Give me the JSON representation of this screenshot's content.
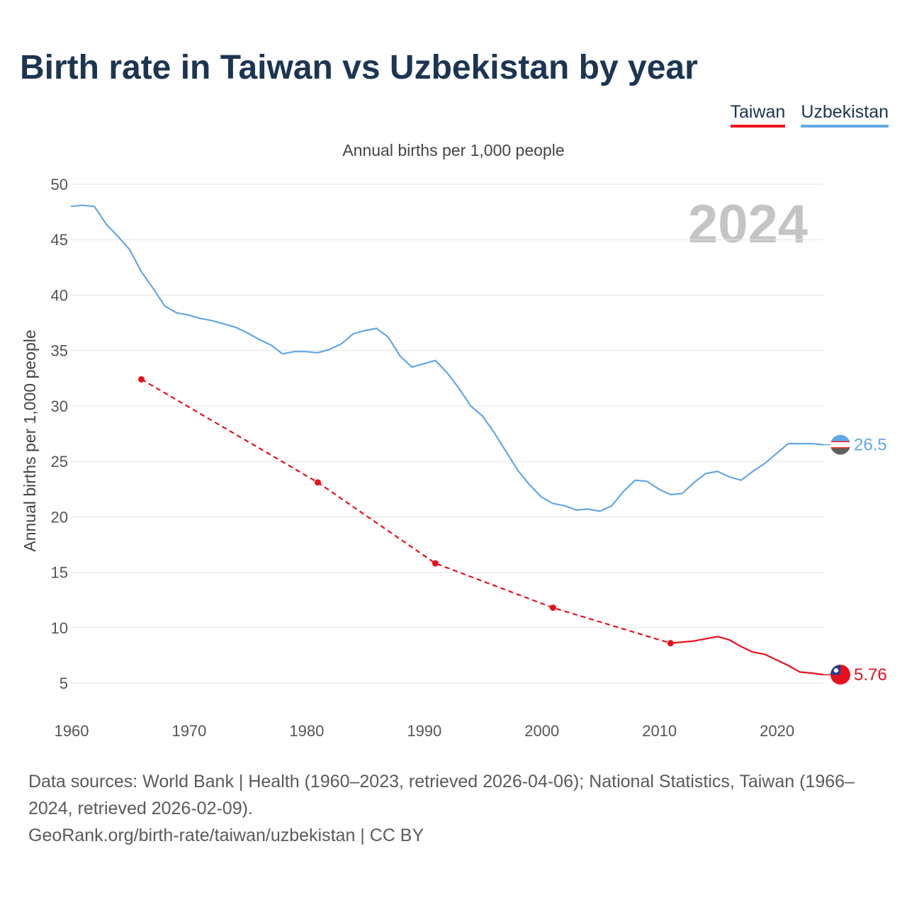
{
  "title": "Birth rate in Taiwan vs Uzbekistan by year",
  "legend": [
    {
      "name": "Taiwan",
      "color": "#e8101c"
    },
    {
      "name": "Uzbekistan",
      "color": "#62a7e6"
    }
  ],
  "footer": {
    "sources": "Data sources: World Bank | Health (1960–2023, retrieved 2026-04-06); National Statistics, Taiwan (1966–2024, retrieved 2026-02-09).",
    "credit": "GeoRank.org/birth-rate/taiwan/uzbekistan | CC BY"
  },
  "chart_data": {
    "type": "line",
    "title": "Birth rate in Taiwan vs Uzbekistan by year",
    "subtitle": "Annual births per 1,000 people",
    "xlabel": "",
    "ylabel": "Annual births per 1,000 people",
    "xlim": [
      1960,
      2024
    ],
    "ylim": [
      5,
      50
    ],
    "xticks": [
      1960,
      1970,
      1980,
      1990,
      2000,
      2010,
      2020
    ],
    "yticks": [
      5,
      10,
      15,
      20,
      25,
      30,
      35,
      40,
      45,
      50
    ],
    "grid": true,
    "current_year": "2024",
    "series": [
      {
        "name": "Uzbekistan",
        "color": "#62a7e6",
        "end_value": 26.5,
        "end_label": "26.5",
        "flag_icon": "uzbekistan-flag-icon",
        "points": [
          [
            1960,
            48.0
          ],
          [
            1961,
            48.1
          ],
          [
            1962,
            48.0
          ],
          [
            1963,
            46.4
          ],
          [
            1964,
            45.3
          ],
          [
            1965,
            44.1
          ],
          [
            1966,
            42.1
          ],
          [
            1967,
            40.6
          ],
          [
            1968,
            39.0
          ],
          [
            1969,
            38.4
          ],
          [
            1970,
            38.2
          ],
          [
            1971,
            37.9
          ],
          [
            1972,
            37.7
          ],
          [
            1973,
            37.4
          ],
          [
            1974,
            37.1
          ],
          [
            1975,
            36.6
          ],
          [
            1976,
            36.0
          ],
          [
            1977,
            35.5
          ],
          [
            1978,
            34.7
          ],
          [
            1979,
            34.9
          ],
          [
            1980,
            34.9
          ],
          [
            1981,
            34.8
          ],
          [
            1982,
            35.1
          ],
          [
            1983,
            35.6
          ],
          [
            1984,
            36.5
          ],
          [
            1985,
            36.8
          ],
          [
            1986,
            37.0
          ],
          [
            1987,
            36.2
          ],
          [
            1988,
            34.5
          ],
          [
            1989,
            33.5
          ],
          [
            1990,
            33.8
          ],
          [
            1991,
            34.1
          ],
          [
            1992,
            33.0
          ],
          [
            1993,
            31.6
          ],
          [
            1994,
            30.0
          ],
          [
            1995,
            29.1
          ],
          [
            1996,
            27.6
          ],
          [
            1997,
            25.9
          ],
          [
            1998,
            24.2
          ],
          [
            1999,
            22.9
          ],
          [
            2000,
            21.8
          ],
          [
            2001,
            21.2
          ],
          [
            2002,
            21.0
          ],
          [
            2003,
            20.6
          ],
          [
            2004,
            20.7
          ],
          [
            2005,
            20.5
          ],
          [
            2006,
            21.0
          ],
          [
            2007,
            22.3
          ],
          [
            2008,
            23.3
          ],
          [
            2009,
            23.2
          ],
          [
            2010,
            22.5
          ],
          [
            2011,
            22.0
          ],
          [
            2012,
            22.1
          ],
          [
            2013,
            23.1
          ],
          [
            2014,
            23.9
          ],
          [
            2015,
            24.1
          ],
          [
            2016,
            23.6
          ],
          [
            2017,
            23.3
          ],
          [
            2018,
            24.1
          ],
          [
            2019,
            24.8
          ],
          [
            2020,
            25.7
          ],
          [
            2021,
            26.6
          ],
          [
            2022,
            26.6
          ],
          [
            2023,
            26.6
          ],
          [
            2024,
            26.5
          ]
        ],
        "dashed_segments": []
      },
      {
        "name": "Taiwan",
        "color": "#e8101c",
        "end_value": 5.76,
        "end_label": "5.76",
        "flag_icon": "taiwan-flag-icon",
        "points": [
          [
            1966,
            32.4
          ],
          [
            1981,
            23.1
          ],
          [
            1991,
            15.8
          ],
          [
            2001,
            11.8
          ],
          [
            2011,
            8.6
          ],
          [
            2012,
            8.7
          ],
          [
            2013,
            8.8
          ],
          [
            2014,
            9.0
          ],
          [
            2015,
            9.2
          ],
          [
            2016,
            8.9
          ],
          [
            2017,
            8.3
          ],
          [
            2018,
            7.8
          ],
          [
            2019,
            7.6
          ],
          [
            2020,
            7.1
          ],
          [
            2021,
            6.6
          ],
          [
            2022,
            6.0
          ],
          [
            2023,
            5.9
          ],
          [
            2024,
            5.76
          ]
        ],
        "dashed_segments": [
          [
            1966,
            2011
          ]
        ],
        "markers": [
          1966,
          1981,
          1991,
          2001,
          2011
        ]
      }
    ]
  }
}
